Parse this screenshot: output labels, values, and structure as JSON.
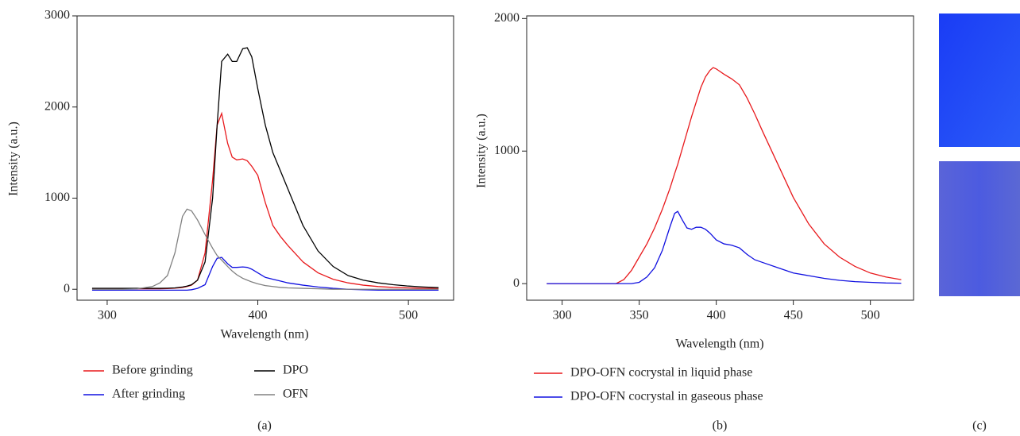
{
  "chart_data": [
    {
      "type": "line",
      "x_label": "Wavelength (nm)",
      "y_label": "Intensity (a.u.)",
      "xlim": [
        280,
        530
      ],
      "xticks": [
        300,
        400,
        500
      ],
      "ylim": [
        -120,
        3000
      ],
      "yticks": [
        0,
        1000,
        2000,
        3000
      ],
      "x": [
        290,
        300,
        310,
        320,
        330,
        335,
        340,
        345,
        350,
        353,
        356,
        360,
        365,
        370,
        373,
        376,
        380,
        383,
        386,
        390,
        393,
        396,
        400,
        405,
        410,
        415,
        420,
        430,
        440,
        450,
        460,
        470,
        480,
        490,
        500,
        510,
        520
      ],
      "series": [
        {
          "name": "Before grinding",
          "color": "#e8191c",
          "values": [
            5,
            5,
            5,
            5,
            5,
            5,
            8,
            12,
            20,
            30,
            45,
            100,
            400,
            1200,
            1800,
            1930,
            1600,
            1450,
            1420,
            1430,
            1410,
            1350,
            1250,
            950,
            700,
            580,
            480,
            300,
            180,
            110,
            70,
            45,
            30,
            20,
            15,
            10,
            8
          ]
        },
        {
          "name": "After grinding",
          "color": "#1010e0",
          "values": [
            -10,
            -10,
            -10,
            -10,
            -10,
            -10,
            -10,
            -10,
            -10,
            -10,
            -5,
            10,
            50,
            250,
            340,
            350,
            280,
            240,
            240,
            245,
            240,
            220,
            180,
            130,
            110,
            90,
            70,
            45,
            25,
            10,
            0,
            -5,
            -10,
            -10,
            -10,
            -10,
            -10
          ]
        },
        {
          "name": "DPO",
          "color": "#000000",
          "values": [
            10,
            10,
            10,
            10,
            10,
            10,
            12,
            15,
            25,
            35,
            50,
            100,
            300,
            1000,
            1800,
            2500,
            2580,
            2500,
            2500,
            2640,
            2650,
            2550,
            2200,
            1800,
            1500,
            1300,
            1100,
            700,
            420,
            250,
            150,
            100,
            70,
            50,
            35,
            25,
            18
          ]
        },
        {
          "name": "OFN",
          "color": "#808080",
          "values": [
            0,
            0,
            0,
            5,
            30,
            70,
            150,
            400,
            800,
            880,
            860,
            760,
            600,
            450,
            370,
            320,
            250,
            200,
            160,
            120,
            100,
            80,
            60,
            40,
            30,
            20,
            15,
            10,
            5,
            0,
            0,
            0,
            0,
            0,
            0,
            0,
            0
          ]
        }
      ]
    },
    {
      "type": "line",
      "x_label": "Wavelength (nm)",
      "y_label": "Intensity (a.u.)",
      "xlim": [
        277,
        528
      ],
      "xticks": [
        300,
        350,
        400,
        450,
        500
      ],
      "ylim": [
        -125,
        2020
      ],
      "yticks": [
        0,
        1000,
        2000
      ],
      "x": [
        290,
        300,
        310,
        320,
        330,
        335,
        340,
        345,
        350,
        355,
        360,
        365,
        370,
        373,
        375,
        378,
        381,
        384,
        387,
        390,
        393,
        396,
        398,
        400,
        405,
        410,
        415,
        420,
        425,
        430,
        440,
        450,
        460,
        470,
        480,
        490,
        500,
        510,
        520
      ],
      "series": [
        {
          "name": "DPO-OFN cocrystal in liquid phase",
          "color": "#e8191c",
          "values": [
            0,
            0,
            0,
            0,
            0,
            0,
            30,
            100,
            200,
            300,
            420,
            560,
            720,
            830,
            900,
            1020,
            1140,
            1260,
            1370,
            1480,
            1560,
            1610,
            1630,
            1620,
            1580,
            1545,
            1500,
            1400,
            1280,
            1150,
            900,
            650,
            450,
            300,
            200,
            130,
            80,
            50,
            30
          ]
        },
        {
          "name": "DPO-OFN cocrystal in gaseous phase",
          "color": "#1010e0",
          "values": [
            0,
            0,
            0,
            0,
            0,
            0,
            0,
            0,
            10,
            50,
            120,
            250,
            430,
            530,
            545,
            480,
            420,
            410,
            425,
            425,
            410,
            380,
            355,
            330,
            300,
            290,
            270,
            220,
            180,
            160,
            120,
            80,
            60,
            40,
            25,
            15,
            10,
            5,
            3
          ]
        }
      ]
    }
  ],
  "panels": [
    "(a)",
    "(b)",
    "(c)"
  ]
}
